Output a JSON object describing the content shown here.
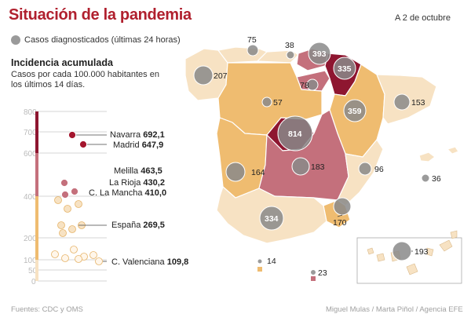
{
  "header": {
    "title": "Situación de la pandemia",
    "date": "A 2 de octubre"
  },
  "legend": {
    "bubble_label": "Casos diagnosticados (últimas 24 horas)"
  },
  "incidence": {
    "title": "Incidencia acumulada",
    "description": "Casos por cada 100.000 habitantes en los últimos 14 días."
  },
  "colors": {
    "title": "#b0202e",
    "very_high": "#8e1630",
    "high": "#c4707c",
    "medium": "#efbc70",
    "low": "#f7e2c3",
    "bubble": "#8a8a8a"
  },
  "scale": {
    "ticks": [
      "800",
      "700",
      "600",
      "400",
      "200",
      "100",
      "50",
      "0"
    ],
    "labels": [
      {
        "name": "Navarra",
        "value": "692,1"
      },
      {
        "name": "Madrid",
        "value": "647,9"
      },
      {
        "name": "Melilla",
        "value": "463,5"
      },
      {
        "name": "La Rioja",
        "value": "430,2"
      },
      {
        "name": "C. La Mancha",
        "value": "410,0"
      },
      {
        "name": "España",
        "value": "269,5"
      },
      {
        "name": "C. Valenciana",
        "value": "109,8"
      }
    ]
  },
  "map_bubbles": {
    "galicia": "207",
    "asturias": "75",
    "cantabria": "38",
    "pais_vasco": "393",
    "navarra": "335",
    "la_rioja": "78",
    "castilla_leon": "57",
    "aragon": "359",
    "cataluna": "153",
    "madrid": "814",
    "extremadura": "164",
    "castilla_la_mancha": "183",
    "valencia": "96",
    "baleares": "36",
    "murcia": "170",
    "andalucia": "334",
    "ceuta": "14",
    "melilla": "23",
    "canarias": "193"
  },
  "footer": {
    "sources": "Fuentes: CDC y OMS",
    "credits": "Miguel Mulas / Marta Piñol / Agencia EFE"
  }
}
